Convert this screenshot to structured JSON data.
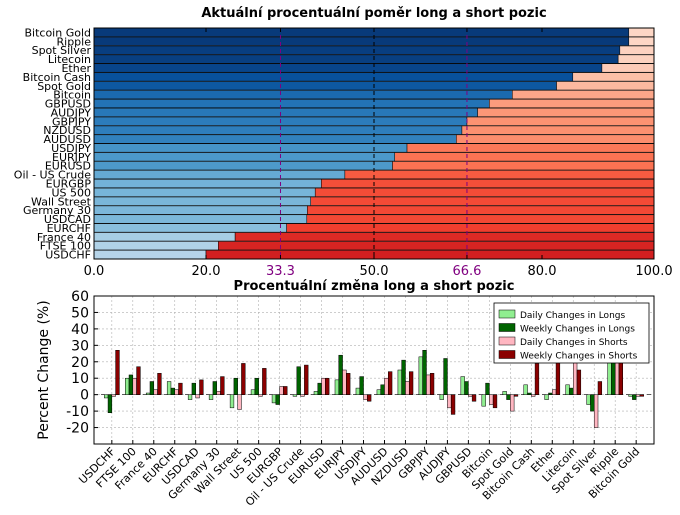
{
  "chart_data": [
    {
      "type": "bar",
      "orientation": "horizontal-stacked",
      "title": "Aktuální procentuální poměr long a short pozic",
      "xlim": [
        0,
        100
      ],
      "xticks": [
        {
          "value": 0,
          "label": "0.0",
          "color": "#000000"
        },
        {
          "value": 20,
          "label": "20.0",
          "color": "#000000"
        },
        {
          "value": 33.3,
          "label": "33.3",
          "color": "#800080"
        },
        {
          "value": 50,
          "label": "50.0",
          "color": "#000000"
        },
        {
          "value": 66.6,
          "label": "66.6",
          "color": "#800080"
        },
        {
          "value": 80,
          "label": "80.0",
          "color": "#000000"
        },
        {
          "value": 100,
          "label": "100.0",
          "color": "#000000"
        }
      ],
      "reference_lines": [
        {
          "value": 33.3,
          "color": "#800080",
          "style": "dashed"
        },
        {
          "value": 50,
          "color": "#000000",
          "style": "dashed"
        },
        {
          "value": 66.6,
          "color": "#800080",
          "style": "dashed"
        }
      ],
      "grid": false,
      "categories": [
        "Bitcoin Gold",
        "Ripple",
        "Spot Silver",
        "Litecoin",
        "Ether",
        "Bitcoin Cash",
        "Spot Gold",
        "Bitcoin",
        "GBPUSD",
        "AUDJPY",
        "GBPJPY",
        "NZDUSD",
        "AUDUSD",
        "USDJPY",
        "EURJPY",
        "EURUSD",
        "Oil - US Crude",
        "EURGBP",
        "US 500",
        "Wall Street",
        "Germany 30",
        "USDCAD",
        "EURCHF",
        "France 40",
        "FTSE 100",
        "USDCHF"
      ],
      "long_percent": [
        95.5,
        95.5,
        93.9,
        93.6,
        90.7,
        85.5,
        82.6,
        74.7,
        70.6,
        68.5,
        66.6,
        65.7,
        64.7,
        55.9,
        53.7,
        53.3,
        44.8,
        40.6,
        39.5,
        38.7,
        38.1,
        38.0,
        34.4,
        25.2,
        22.2,
        20.0
      ],
      "colormap_long": "Blues",
      "colormap_short": "Reds"
    },
    {
      "type": "bar",
      "title": "Procentuální změna long a short pozic",
      "ylabel": "Percent Change (%)",
      "ylim": [
        -30,
        60
      ],
      "yticks": [
        -20,
        -10,
        0,
        10,
        20,
        30,
        40,
        50,
        60
      ],
      "grid": true,
      "legend_position": "top-right",
      "categories": [
        "USDCHF",
        "FTSE 100",
        "France 40",
        "EURCHF",
        "USDCAD",
        "Germany 30",
        "Wall Street",
        "US 500",
        "EURGBP",
        "Oil - US Crude",
        "EURUSD",
        "EURJPY",
        "USDJPY",
        "AUDUSD",
        "NZDUSD",
        "GBPJPY",
        "AUDJPY",
        "GBPUSD",
        "Bitcoin",
        "Spot Gold",
        "Bitcoin Cash",
        "Ether",
        "Litecoin",
        "Spot Silver",
        "Ripple",
        "Bitcoin Gold"
      ],
      "series": [
        {
          "name": "Daily Changes in Longs",
          "color": "#90ee90",
          "values": [
            -2,
            10,
            1,
            8,
            -3,
            -3,
            -8,
            3,
            -5,
            -1,
            2,
            9,
            4,
            3,
            15,
            23,
            -3,
            11,
            -7,
            2,
            6,
            -3,
            6,
            -6,
            23,
            -1
          ]
        },
        {
          "name": "Weekly Changes in Longs",
          "color": "#006400",
          "values": [
            -11,
            12,
            8,
            4,
            7,
            8,
            10,
            10,
            -6,
            17,
            7,
            24,
            11,
            6,
            21,
            27,
            22,
            8,
            7,
            -3,
            1,
            1,
            4,
            -10,
            24,
            -3
          ]
        },
        {
          "name": "Daily Changes in Shorts",
          "color": "#ffb6c1",
          "values": [
            -1,
            10,
            3,
            3,
            -2,
            2,
            -9,
            -1,
            5,
            -1,
            10,
            15,
            -3,
            10,
            8,
            12,
            -8,
            -1,
            -6,
            -10,
            -1,
            3,
            24,
            -20,
            22,
            -1
          ]
        },
        {
          "name": "Weekly Changes in Shorts",
          "color": "#8b0000",
          "values": [
            27,
            17,
            13,
            7,
            9,
            11,
            19,
            16,
            5,
            18,
            10,
            13,
            -4,
            14,
            14,
            13,
            -12,
            -4,
            -8,
            -1,
            19,
            24,
            15,
            8,
            26,
            -1
          ]
        }
      ]
    }
  ]
}
